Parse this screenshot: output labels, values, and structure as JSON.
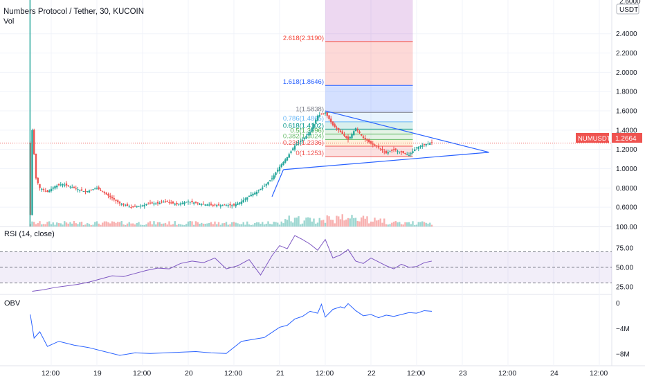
{
  "header": {
    "title": "Numbers Protocol / Tether, 30, KUCOIN",
    "vol_label": "Vol",
    "currency": "USDT",
    "top_tick": "2.6000"
  },
  "price_tag": {
    "symbol": "NUMUSDT",
    "value": "1.2664",
    "color": "#ef5350"
  },
  "colors": {
    "up": "#26a69a",
    "down": "#ef5350",
    "rsi": "#7e57c2",
    "obv": "#2962ff",
    "trend": "#2962ff",
    "fib_top": "#9c27b0"
  },
  "chart_data": [
    {
      "type": "candlestick",
      "title": "Numbers Protocol / Tether, 30, KUCOIN",
      "ylim": [
        0.4,
        2.75
      ],
      "yticks": [
        "0.6000",
        "0.8000",
        "1.0000",
        "1.2000",
        "1.4000",
        "1.6000",
        "1.8000",
        "2.0000",
        "2.2000",
        "2.4000"
      ],
      "yticks_values": [
        0.6,
        0.8,
        1.0,
        1.2,
        1.4,
        1.6,
        1.8,
        2.0,
        2.2,
        2.4
      ],
      "xticks": [
        "12:00",
        "19",
        "12:00",
        "20",
        "12:00",
        "21",
        "12:00",
        "22",
        "12:00",
        "23",
        "12:00",
        "24",
        "12:00"
      ],
      "xticks_hours": [
        12,
        24,
        36,
        48,
        60,
        72,
        84,
        96,
        108,
        120,
        132,
        144,
        156
      ],
      "last_price": 1.2664,
      "price_path_hours": [
        6.5,
        7,
        8,
        9,
        11,
        13,
        15,
        18,
        21,
        24,
        27,
        30,
        33,
        36,
        38,
        40,
        42,
        45,
        48,
        52,
        56,
        60,
        62,
        64,
        66,
        68,
        70,
        72,
        74,
        76,
        78,
        80,
        82,
        84,
        86,
        88,
        90,
        92,
        94,
        96,
        98,
        100,
        102,
        104,
        106,
        108,
        110,
        112
      ],
      "price_path_values": [
        0.52,
        1.4,
        0.9,
        0.8,
        0.76,
        0.82,
        0.84,
        0.8,
        0.76,
        0.8,
        0.72,
        0.64,
        0.6,
        0.62,
        0.64,
        0.64,
        0.66,
        0.63,
        0.66,
        0.63,
        0.62,
        0.62,
        0.66,
        0.72,
        0.76,
        0.82,
        0.9,
        1.02,
        1.12,
        1.24,
        1.3,
        1.38,
        1.55,
        1.58,
        1.45,
        1.38,
        1.3,
        1.42,
        1.32,
        1.26,
        1.22,
        1.16,
        1.2,
        1.17,
        1.14,
        1.22,
        1.25,
        1.27
      ],
      "fibonacci": [
        {
          "level": "0",
          "price": 1.1253,
          "label": "0(1.1253)"
        },
        {
          "level": "0.236",
          "price": 1.2336,
          "label": "0.236(1.2336)"
        },
        {
          "level": "0.382",
          "price": 1.3024,
          "label": "0.382(1.3024)"
        },
        {
          "level": "0.5",
          "price": 1.3596,
          "label": "0.5(1.3596)"
        },
        {
          "level": "0.618",
          "price": 1.4102,
          "label": "0.618(1.4102)"
        },
        {
          "level": "0.786",
          "price": 1.4865,
          "label": "0.786(1.4865)"
        },
        {
          "level": "1",
          "price": 1.5838,
          "label": "1(1.5838)"
        },
        {
          "level": "1.618",
          "price": 1.8646,
          "label": "1.618(1.8646)"
        },
        {
          "level": "2.618",
          "price": 2.319,
          "label": "2.618(2.3190)"
        }
      ],
      "trendlines": [
        {
          "from_hours": 73,
          "from_price": 0.99,
          "to_hours": 127,
          "to_price": 1.17
        },
        {
          "from_hours": 84,
          "from_price": 1.6,
          "to_hours": 127,
          "to_price": 1.17
        },
        {
          "from_hours": 70,
          "from_price": 0.71,
          "to_hours": 73,
          "to_price": 0.99
        }
      ]
    },
    {
      "type": "line",
      "title": "RSI (14, close)",
      "ylim": [
        15,
        100
      ],
      "yticks": [
        "25.00",
        "50.00",
        "75.00"
      ],
      "yticks_values": [
        25,
        50,
        75
      ],
      "x": [
        7,
        10,
        13,
        16,
        19,
        22,
        25,
        28,
        31,
        34,
        37,
        40,
        43,
        46,
        49,
        52,
        55,
        58,
        61,
        64,
        67,
        70,
        72,
        74,
        76,
        78,
        80,
        82,
        84,
        86,
        88,
        90,
        92,
        94,
        96,
        98,
        100,
        102,
        104,
        106,
        108,
        110,
        112
      ],
      "y": [
        19,
        21,
        24,
        26,
        28,
        31,
        35,
        39,
        38,
        42,
        46,
        49,
        48,
        55,
        58,
        56,
        62,
        48,
        52,
        60,
        40,
        65,
        78,
        74,
        91,
        86,
        80,
        72,
        86,
        62,
        66,
        73,
        58,
        55,
        62,
        57,
        52,
        48,
        54,
        50,
        51,
        56,
        58
      ]
    },
    {
      "type": "line",
      "title": "OBV",
      "ylim": [
        -9.5,
        0.8
      ],
      "yticks": [
        "0",
        "−4M",
        "−8M"
      ],
      "yticks_values": [
        0,
        -4,
        -8
      ],
      "x": [
        6.5,
        7.5,
        9,
        11,
        14,
        18,
        22,
        26,
        30,
        34,
        38,
        42,
        46,
        50,
        54,
        58,
        62,
        64,
        66,
        68,
        70,
        72,
        74,
        76,
        78,
        80,
        82,
        83,
        84,
        86,
        88,
        89,
        90,
        92,
        94,
        96,
        98,
        100,
        102,
        104,
        106,
        108,
        110,
        112
      ],
      "y": [
        -1.8,
        -5.5,
        -4.5,
        -6.8,
        -6.0,
        -6.6,
        -7.0,
        -7.6,
        -8.2,
        -7.8,
        -7.9,
        -7.8,
        -7.7,
        -7.6,
        -7.8,
        -7.9,
        -6.0,
        -5.8,
        -5.6,
        -5.4,
        -4.6,
        -3.8,
        -3.5,
        -2.5,
        -2.1,
        -1.3,
        -1.6,
        -0.2,
        -2.2,
        -1.0,
        -0.6,
        -0.8,
        -0.1,
        -1.2,
        -2.0,
        -1.8,
        -2.3,
        -1.9,
        -2.1,
        -1.8,
        -1.5,
        -1.6,
        -1.2,
        -1.3
      ]
    }
  ],
  "panes": {
    "rsi_title": "RSI (14, close)",
    "obv_title": "OBV",
    "top_volume_tick": "100.00"
  }
}
